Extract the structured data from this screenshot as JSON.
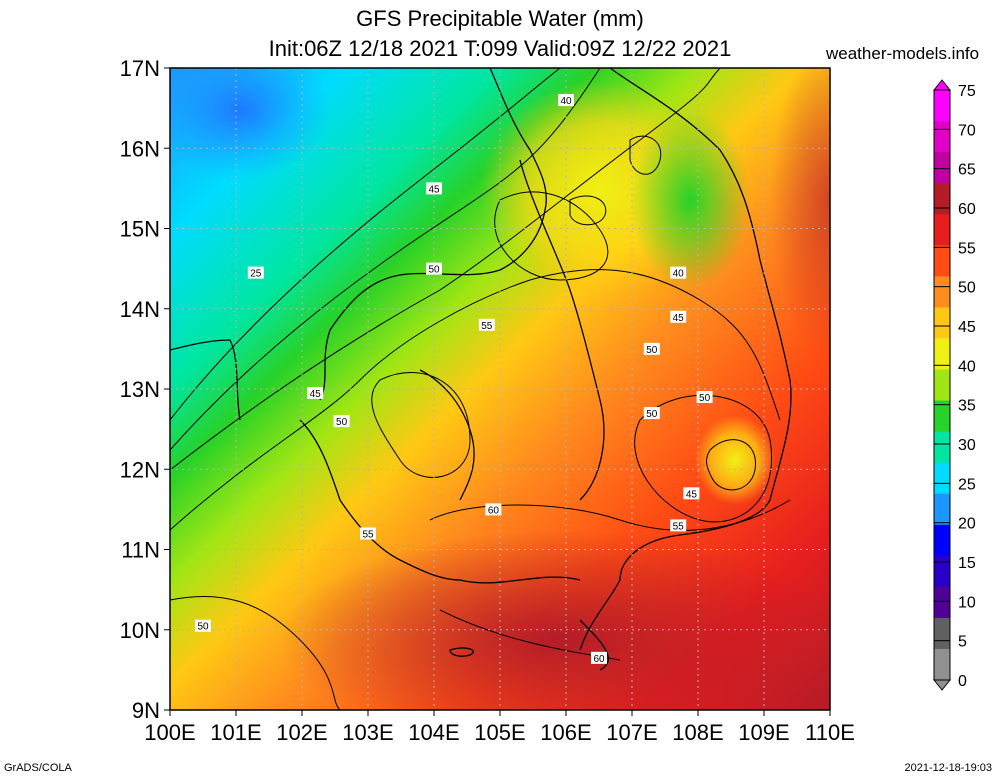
{
  "title": {
    "line1": "GFS Precipitable Water (mm)",
    "line2": "Init:06Z 12/18 2021 T:099 Valid:09Z 12/22 2021"
  },
  "site": "weather-models.info",
  "footer": {
    "left": "GrADS/COLA",
    "right": "2021-12-18-19:03"
  },
  "map": {
    "lon_range": [
      100,
      110
    ],
    "lat_range": [
      9,
      17
    ],
    "lon_ticks": [
      "100E",
      "101E",
      "102E",
      "103E",
      "104E",
      "105E",
      "106E",
      "107E",
      "108E",
      "109E",
      "110E"
    ],
    "lat_ticks": [
      "17N",
      "16N",
      "15N",
      "14N",
      "13N",
      "12N",
      "11N",
      "10N",
      "9N"
    ],
    "grid": true
  },
  "colorbar": {
    "ticks": [
      "75",
      "70",
      "65",
      "60",
      "55",
      "50",
      "45",
      "40",
      "35",
      "30",
      "25",
      "20",
      "15",
      "10",
      "5",
      "0"
    ],
    "colors": [
      "#ff00ff",
      "#e000c8",
      "#c000a0",
      "#b41c28",
      "#e61e1e",
      "#ff4b14",
      "#ff8c1e",
      "#ffc814",
      "#f0f014",
      "#a0e614",
      "#28d228",
      "#00e6a0",
      "#00dcff",
      "#1e96ff",
      "#0000ff",
      "#2800c8",
      "#500096",
      "#606060",
      "#909090"
    ]
  },
  "contour_labels": [
    {
      "text": "40",
      "lon": 106.0,
      "lat": 16.6
    },
    {
      "text": "45",
      "lon": 104.0,
      "lat": 15.5
    },
    {
      "text": "25",
      "lon": 101.3,
      "lat": 14.45
    },
    {
      "text": "50",
      "lon": 104.0,
      "lat": 14.5
    },
    {
      "text": "40",
      "lon": 107.7,
      "lat": 14.45
    },
    {
      "text": "55",
      "lon": 104.8,
      "lat": 13.8
    },
    {
      "text": "45",
      "lon": 107.7,
      "lat": 13.9
    },
    {
      "text": "50",
      "lon": 107.3,
      "lat": 13.5
    },
    {
      "text": "45",
      "lon": 102.2,
      "lat": 12.95
    },
    {
      "text": "50",
      "lon": 102.6,
      "lat": 12.6
    },
    {
      "text": "50",
      "lon": 108.1,
      "lat": 12.9
    },
    {
      "text": "50",
      "lon": 107.3,
      "lat": 12.7
    },
    {
      "text": "45",
      "lon": 107.9,
      "lat": 11.7
    },
    {
      "text": "60",
      "lon": 104.9,
      "lat": 11.5
    },
    {
      "text": "55",
      "lon": 103.0,
      "lat": 11.2
    },
    {
      "text": "55",
      "lon": 107.7,
      "lat": 11.3
    },
    {
      "text": "50",
      "lon": 100.5,
      "lat": 10.05
    },
    {
      "text": "60",
      "lon": 106.5,
      "lat": 9.65
    }
  ]
}
